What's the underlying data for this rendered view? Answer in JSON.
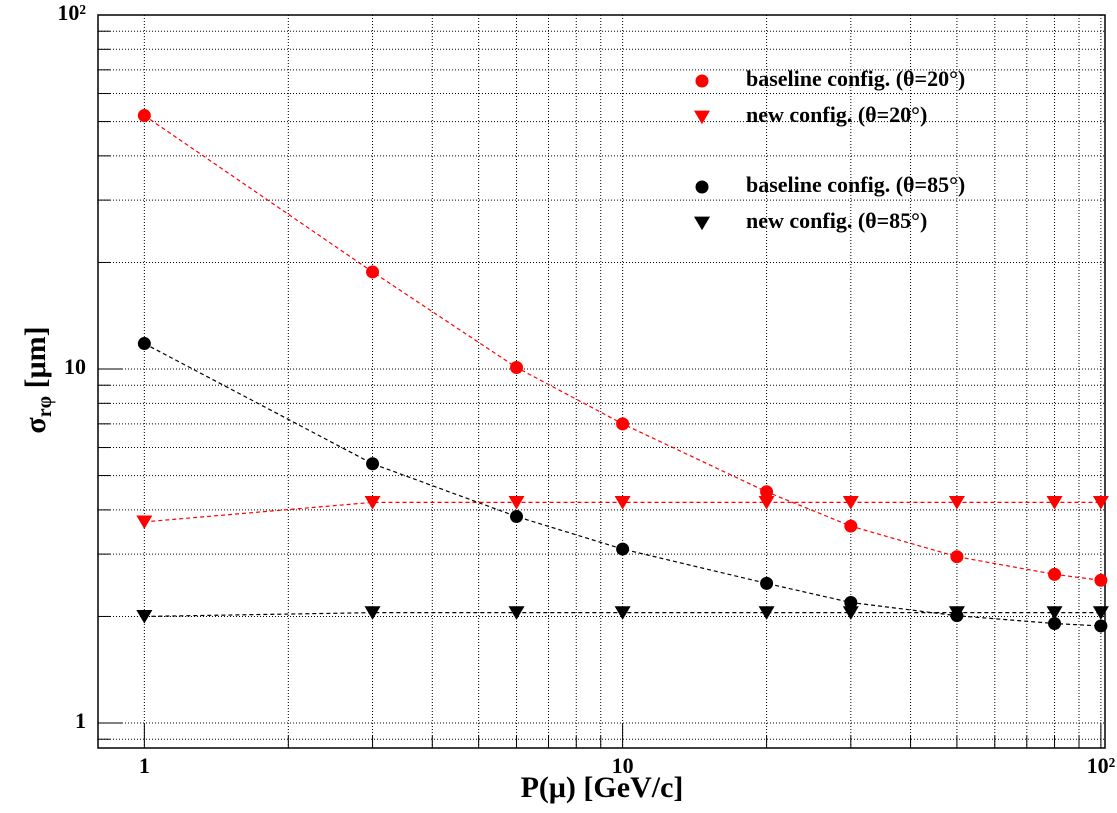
{
  "chart_data": {
    "type": "scatter",
    "xlabel": "P(μ) [GeV/c]",
    "ylabel": {
      "main": "σ",
      "sub": "rφ",
      "unit": " [μm]"
    },
    "log_x": true,
    "log_y": true,
    "grid": true,
    "legend": "upper right",
    "xlim": [
      0.8,
      102
    ],
    "ylim": [
      0.85,
      100
    ],
    "xticks": [
      1,
      10,
      {
        "value": 100,
        "label": "10²"
      }
    ],
    "yticks": [
      1,
      10,
      {
        "value": 100,
        "label": "10²"
      }
    ],
    "xminorticks": [
      2,
      3,
      4,
      5,
      6,
      7,
      8,
      9,
      20,
      30,
      40,
      50,
      60,
      70,
      80,
      90
    ],
    "yminorticks": [
      0.9,
      2,
      3,
      4,
      5,
      6,
      7,
      8,
      9,
      20,
      30,
      40,
      50,
      60,
      70,
      80,
      90
    ],
    "series": [
      {
        "name": "baseline config. (θ=20°)",
        "color": "#ff0000",
        "marker": "circle",
        "x": [
          1,
          3,
          6,
          10,
          20,
          30,
          50,
          80,
          100
        ],
        "values": [
          52,
          18.8,
          10.1,
          7.0,
          4.5,
          3.6,
          2.95,
          2.63,
          2.53
        ]
      },
      {
        "name": "new config. (θ=20°)",
        "color": "#ff0000",
        "marker": "triangle-down",
        "x": [
          1,
          3,
          6,
          10,
          20,
          30,
          50,
          80,
          100
        ],
        "values": [
          3.7,
          4.2,
          4.2,
          4.2,
          4.2,
          4.2,
          4.2,
          4.2,
          4.2
        ]
      },
      {
        "name": "baseline config. (θ=85°)",
        "color": "#000000",
        "marker": "circle",
        "x": [
          1,
          3,
          6,
          10,
          20,
          30,
          50,
          80,
          100
        ],
        "values": [
          11.8,
          5.4,
          3.83,
          3.1,
          2.48,
          2.19,
          2.01,
          1.91,
          1.88
        ]
      },
      {
        "name": "new config. (θ=85°)",
        "color": "#000000",
        "marker": "triangle-down",
        "x": [
          1,
          3,
          6,
          10,
          20,
          30,
          50,
          80,
          100
        ],
        "values": [
          2.0,
          2.05,
          2.05,
          2.05,
          2.05,
          2.05,
          2.05,
          2.05,
          2.05
        ]
      }
    ]
  }
}
